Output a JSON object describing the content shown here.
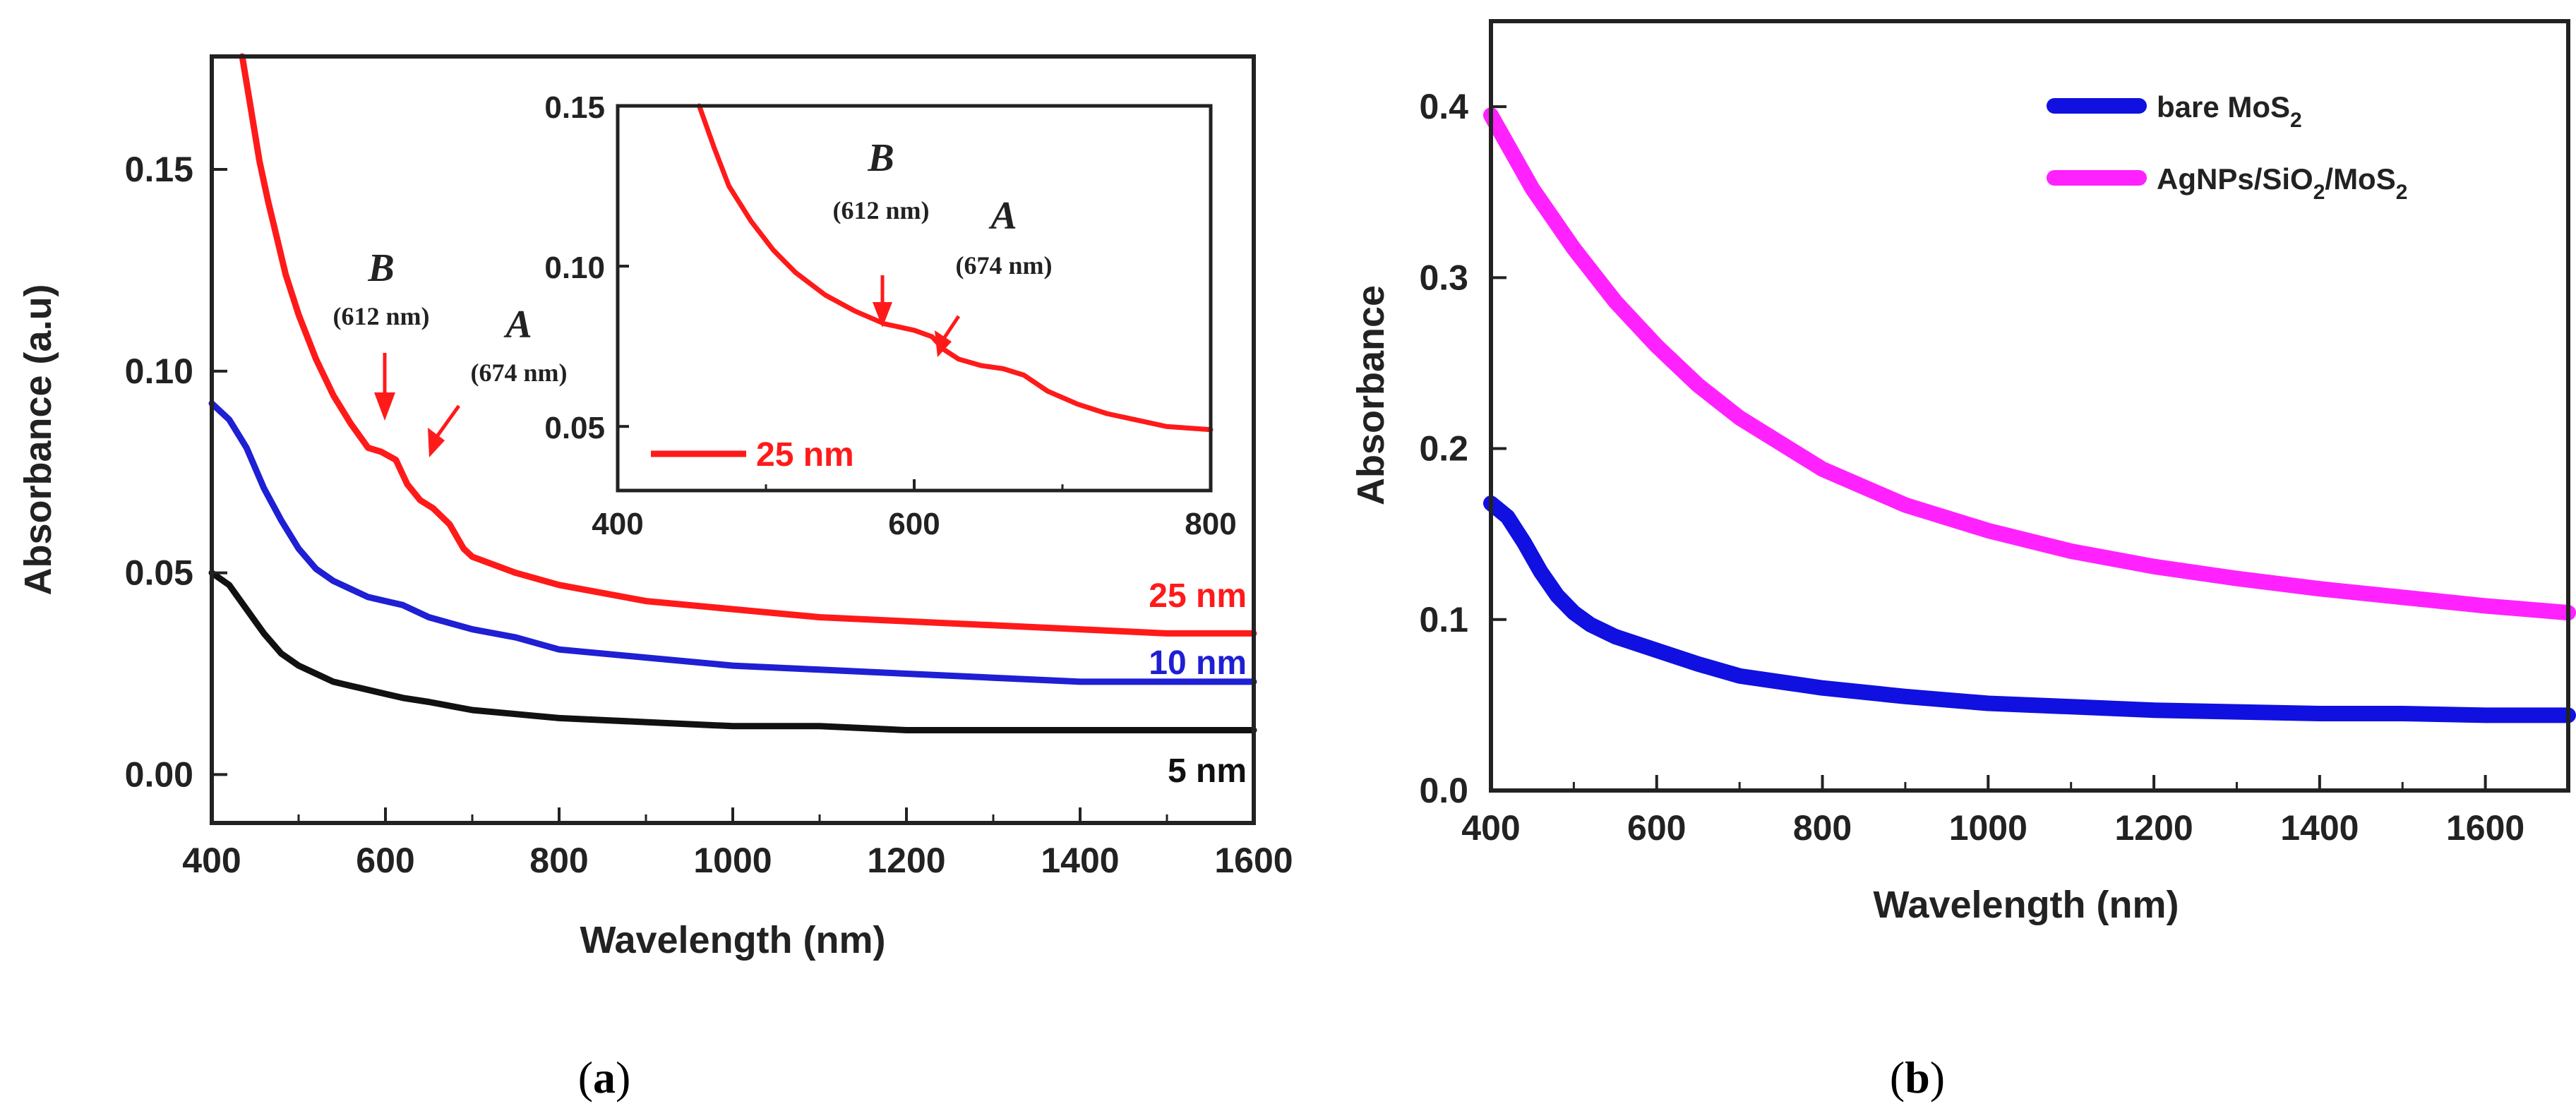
{
  "chart_data": [
    {
      "panel": "a",
      "type": "line",
      "panel_label": {
        "open": "(",
        "letter": "a",
        "close": ")"
      },
      "xlabel": "Wavelength (nm)",
      "ylabel": "Absorbance (a.u)",
      "xlim": [
        400,
        1600
      ],
      "ylim": [
        -0.012,
        0.178
      ],
      "xticks": [
        400,
        600,
        800,
        1000,
        1200,
        1400,
        1600
      ],
      "yticks": [
        0.0,
        0.05,
        0.1,
        0.15
      ],
      "ytick_labels": [
        "0.00",
        "0.05",
        "0.10",
        "0.15"
      ],
      "series": [
        {
          "name": "25 nm",
          "color": "#ff1a1a",
          "x": [
            435,
            445,
            455,
            465,
            475,
            485,
            500,
            520,
            540,
            560,
            580,
            595,
            612,
            625,
            640,
            655,
            674,
            690,
            700,
            750,
            800,
            900,
            1000,
            1100,
            1200,
            1300,
            1400,
            1500,
            1600
          ],
          "y": [
            0.178,
            0.165,
            0.152,
            0.142,
            0.133,
            0.124,
            0.114,
            0.103,
            0.094,
            0.087,
            0.081,
            0.08,
            0.078,
            0.072,
            0.068,
            0.066,
            0.062,
            0.056,
            0.054,
            0.05,
            0.047,
            0.043,
            0.041,
            0.039,
            0.038,
            0.037,
            0.036,
            0.035,
            0.035
          ]
        },
        {
          "name": "10 nm",
          "color": "#1f1fd4",
          "x": [
            400,
            420,
            440,
            460,
            480,
            500,
            520,
            540,
            560,
            580,
            600,
            620,
            650,
            700,
            750,
            800,
            900,
            1000,
            1100,
            1200,
            1300,
            1400,
            1500,
            1600
          ],
          "y": [
            0.092,
            0.088,
            0.081,
            0.071,
            0.063,
            0.056,
            0.051,
            0.048,
            0.046,
            0.044,
            0.043,
            0.042,
            0.039,
            0.036,
            0.034,
            0.031,
            0.029,
            0.027,
            0.026,
            0.025,
            0.024,
            0.023,
            0.023,
            0.023
          ]
        },
        {
          "name": "5 nm",
          "color": "#111111",
          "x": [
            400,
            420,
            440,
            460,
            480,
            500,
            520,
            540,
            560,
            580,
            600,
            620,
            650,
            700,
            750,
            800,
            900,
            1000,
            1100,
            1200,
            1300,
            1400,
            1500,
            1600
          ],
          "y": [
            0.05,
            0.047,
            0.041,
            0.035,
            0.03,
            0.027,
            0.025,
            0.023,
            0.022,
            0.021,
            0.02,
            0.019,
            0.018,
            0.016,
            0.015,
            0.014,
            0.013,
            0.012,
            0.012,
            0.011,
            0.011,
            0.011,
            0.011,
            0.011
          ]
        }
      ],
      "annotations": [
        {
          "letter": "B",
          "text": "(612 nm)"
        },
        {
          "letter": "A",
          "text": "(674 nm)"
        }
      ],
      "inset": {
        "xlim": [
          400,
          800
        ],
        "ylim": [
          0.03,
          0.15
        ],
        "xticks": [
          400,
          600,
          800
        ],
        "yticks": [
          0.05,
          0.1,
          0.15
        ],
        "ytick_labels": [
          "0.05",
          "0.10",
          "0.15"
        ],
        "legend": "25 nm",
        "series": {
          "name": "25 nm",
          "color": "#ff1a1a",
          "x": [
            455,
            465,
            475,
            490,
            505,
            520,
            540,
            560,
            580,
            600,
            612,
            620,
            630,
            645,
            660,
            674,
            690,
            710,
            730,
            750,
            770,
            800
          ],
          "y": [
            0.15,
            0.137,
            0.125,
            0.114,
            0.105,
            0.098,
            0.091,
            0.086,
            0.082,
            0.08,
            0.078,
            0.074,
            0.071,
            0.069,
            0.068,
            0.066,
            0.061,
            0.057,
            0.054,
            0.052,
            0.05,
            0.049
          ]
        },
        "annotations": [
          {
            "letter": "B",
            "text": "(612 nm)"
          },
          {
            "letter": "A",
            "text": "(674 nm)"
          }
        ]
      }
    },
    {
      "panel": "b",
      "type": "line",
      "panel_label": {
        "open": "(",
        "letter": "b",
        "close": ")"
      },
      "xlabel": "Wavelength (nm)",
      "ylabel": "Absorbance",
      "xlim": [
        400,
        1700
      ],
      "ylim": [
        0,
        0.45
      ],
      "xticks": [
        400,
        600,
        800,
        1000,
        1200,
        1400,
        1600
      ],
      "yticks": [
        0.0,
        0.1,
        0.2,
        0.3,
        0.4
      ],
      "ytick_labels": [
        "0.0",
        "0.1",
        "0.2",
        "0.3",
        "0.4"
      ],
      "legend_position": "top-right",
      "series": [
        {
          "name": "bare MoS2",
          "label_base": "bare MoS",
          "label_sub": "2",
          "color": "#1010e0",
          "x": [
            400,
            420,
            440,
            460,
            480,
            500,
            520,
            550,
            600,
            650,
            700,
            800,
            900,
            1000,
            1100,
            1200,
            1300,
            1400,
            1500,
            1600,
            1700
          ],
          "y": [
            0.168,
            0.16,
            0.145,
            0.128,
            0.114,
            0.104,
            0.097,
            0.09,
            0.082,
            0.074,
            0.067,
            0.06,
            0.055,
            0.051,
            0.049,
            0.047,
            0.046,
            0.045,
            0.045,
            0.044,
            0.044
          ]
        },
        {
          "name": "AgNPs/SiO2/MoS2",
          "label_parts": [
            "AgNPs/SiO",
            "2",
            "/MoS",
            "2"
          ],
          "color": "#ff22ff",
          "x": [
            400,
            450,
            500,
            550,
            600,
            650,
            700,
            800,
            900,
            1000,
            1100,
            1200,
            1300,
            1400,
            1500,
            1600,
            1700
          ],
          "y": [
            0.395,
            0.352,
            0.317,
            0.286,
            0.26,
            0.237,
            0.218,
            0.188,
            0.167,
            0.152,
            0.14,
            0.131,
            0.124,
            0.118,
            0.113,
            0.108,
            0.104
          ]
        }
      ]
    }
  ]
}
